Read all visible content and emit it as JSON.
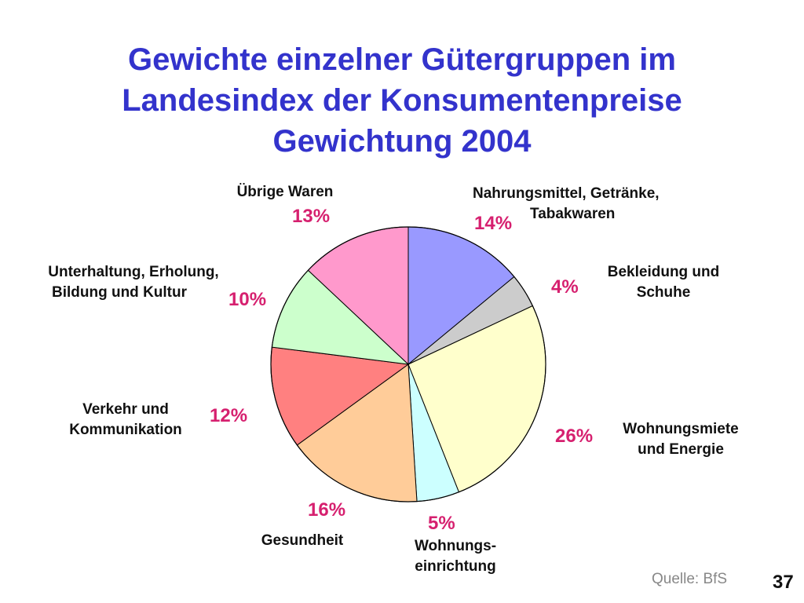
{
  "title": {
    "line1": "Gewichte einzelner Gütergruppen im",
    "line2": "Landesindex der Konsumentenpreise",
    "line3": "Gewichtung 2004"
  },
  "chart_data": {
    "type": "pie",
    "title": "Gewichte einzelner Gütergruppen im Landesindex der Konsumentenpreise Gewichtung 2004",
    "slices": [
      {
        "label_lines": [
          "Nahrungsmittel, Getränke,",
          "Tabakwaren"
        ],
        "value": 14,
        "value_label": "14%",
        "color": "#9999ff"
      },
      {
        "label_lines": [
          "Bekleidung und",
          "Schuhe"
        ],
        "value": 4,
        "value_label": "4%",
        "color": "#cccccc"
      },
      {
        "label_lines": [
          "Wohnungsmiete",
          "und Energie"
        ],
        "value": 26,
        "value_label": "26%",
        "color": "#ffffcc"
      },
      {
        "label_lines": [
          "Wohnungs-",
          "einrichtung"
        ],
        "value": 5,
        "value_label": "5%",
        "color": "#ccffff"
      },
      {
        "label_lines": [
          "Gesundheit"
        ],
        "value": 16,
        "value_label": "16%",
        "color": "#ffcc99"
      },
      {
        "label_lines": [
          "Verkehr und",
          "Kommunikation"
        ],
        "value": 12,
        "value_label": "12%",
        "color": "#ff8080"
      },
      {
        "label_lines": [
          "Unterhaltung, Erholung,",
          "Bildung und Kultur"
        ],
        "value": 10,
        "value_label": "10%",
        "color": "#ccffcc"
      },
      {
        "label_lines": [
          "Übrige Waren"
        ],
        "value": 13,
        "value_label": "13%",
        "color": "#ff99cc"
      }
    ]
  },
  "footer": {
    "source": "Quelle: BfS",
    "page_number": "37"
  }
}
